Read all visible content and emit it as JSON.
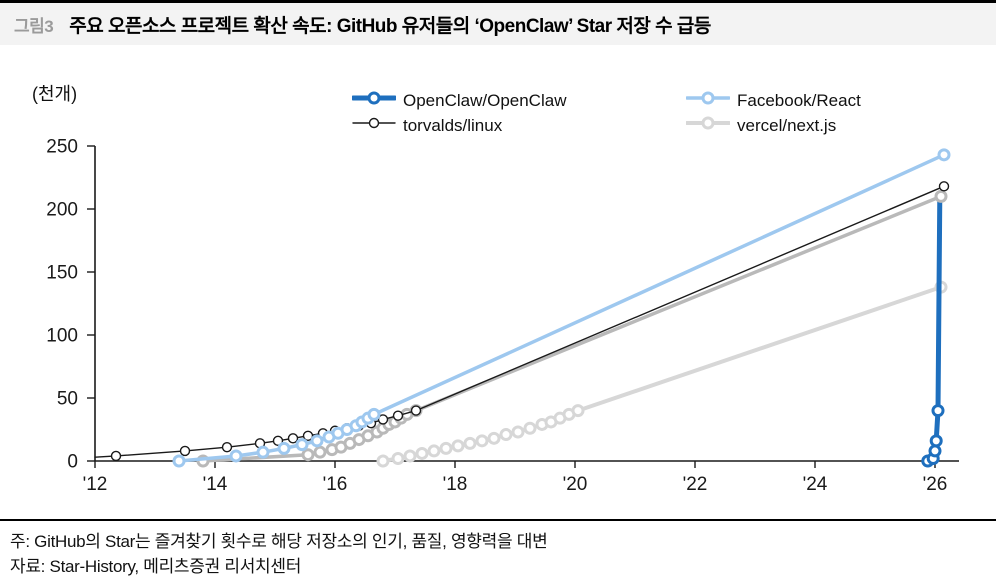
{
  "figure": {
    "tag": "그림3",
    "title": "주요 오픈소스 프로젝트 확산 속도: GitHub 유저들의 ‘OpenClaw’ Star 저장 수 급등"
  },
  "legend": {
    "items": [
      {
        "label": "OpenClaw/OpenClaw",
        "series": "OpenClaw/OpenClaw"
      },
      {
        "label": "Facebook/React",
        "series": "Facebook/React"
      },
      {
        "label": "torvalds/linux",
        "series": "torvalds/linux"
      },
      {
        "label": "vercel/next.js",
        "series": "vercel/next.js"
      }
    ]
  },
  "notes": {
    "note": "주: GitHub의 Star는 즐겨찾기 횟수로 해당 저장소의 인기, 품질, 영향력을 대변",
    "source": "자료: Star-History, 메리츠증권 리서치센터"
  },
  "chart_data": {
    "type": "line",
    "unit_label": "(천개)",
    "xlim": [
      2012,
      2026.4
    ],
    "ylim": [
      0,
      250
    ],
    "x_tick_years": [
      2012,
      2014,
      2016,
      2018,
      2020,
      2022,
      2024,
      2026
    ],
    "x_tick_labels": [
      "'12",
      "'14",
      "'16",
      "'18",
      "'20",
      "'22",
      "'24",
      "'26"
    ],
    "y_ticks": [
      0,
      50,
      100,
      150,
      200,
      250
    ],
    "axis_color": "#1a1a1a",
    "grid": false,
    "legend_position": "top",
    "draw_order": [
      "vercel/next.js",
      "OpenClaw/OpenClaw",
      "unlabeled-gray-series",
      "torvalds/linux",
      "Facebook/React"
    ],
    "series": [
      {
        "name": "OpenClaw/OpenClaw",
        "color": "#1e6fbe",
        "line_width": 5,
        "marker_radius": 5,
        "marker_stroke": 3,
        "points": [
          [
            2025.88,
            0,
            1
          ],
          [
            2025.97,
            2,
            1
          ],
          [
            2026.0,
            8,
            1
          ],
          [
            2026.02,
            16,
            1
          ],
          [
            2026.05,
            40,
            1
          ],
          [
            2026.08,
            210,
            0
          ]
        ]
      },
      {
        "name": "Facebook/React",
        "color": "#9ec8ef",
        "line_width": 3.5,
        "marker_radius": 5,
        "marker_stroke": 3,
        "points": [
          [
            2013.4,
            0,
            1
          ],
          [
            2014.35,
            4,
            1
          ],
          [
            2014.8,
            7,
            1
          ],
          [
            2015.15,
            10,
            1
          ],
          [
            2015.45,
            13,
            1
          ],
          [
            2015.7,
            16,
            1
          ],
          [
            2015.9,
            19,
            1
          ],
          [
            2016.05,
            22,
            1
          ],
          [
            2016.2,
            25,
            1
          ],
          [
            2016.35,
            28,
            1
          ],
          [
            2016.45,
            31,
            1
          ],
          [
            2016.55,
            34,
            1
          ],
          [
            2016.65,
            37,
            1
          ],
          [
            2026.15,
            243,
            1
          ]
        ]
      },
      {
        "name": "torvalds/linux",
        "color": "#1a1a1a",
        "line_width": 1.4,
        "marker_radius": 4.5,
        "marker_stroke": 1.4,
        "points": [
          [
            2012.0,
            3,
            0
          ],
          [
            2012.35,
            4,
            1
          ],
          [
            2013.5,
            8,
            1
          ],
          [
            2014.2,
            11,
            1
          ],
          [
            2014.75,
            14,
            1
          ],
          [
            2015.05,
            16,
            1
          ],
          [
            2015.3,
            18,
            1
          ],
          [
            2015.55,
            20,
            1
          ],
          [
            2015.8,
            22,
            1
          ],
          [
            2016.0,
            24,
            1
          ],
          [
            2016.2,
            26,
            1
          ],
          [
            2016.4,
            28,
            1
          ],
          [
            2016.6,
            30,
            1
          ],
          [
            2016.8,
            33,
            1
          ],
          [
            2017.05,
            36,
            1
          ],
          [
            2017.35,
            40,
            1
          ],
          [
            2026.15,
            218,
            1
          ]
        ]
      },
      {
        "name": "unlabeled-gray-series",
        "color": "#b9b9b9",
        "line_width": 3.5,
        "marker_radius": 5,
        "marker_stroke": 3,
        "points": [
          [
            2013.8,
            0,
            1
          ],
          [
            2015.55,
            5,
            1
          ],
          [
            2015.75,
            7,
            1
          ],
          [
            2015.95,
            9,
            1
          ],
          [
            2016.1,
            11,
            1
          ],
          [
            2016.25,
            14,
            1
          ],
          [
            2016.4,
            17,
            1
          ],
          [
            2016.55,
            20,
            1
          ],
          [
            2016.7,
            23,
            1
          ],
          [
            2016.8,
            26,
            1
          ],
          [
            2016.9,
            29,
            1
          ],
          [
            2017.0,
            31,
            1
          ],
          [
            2017.1,
            34,
            1
          ],
          [
            2017.2,
            37,
            1
          ],
          [
            2017.35,
            40,
            1
          ],
          [
            2026.1,
            210,
            1
          ]
        ]
      },
      {
        "name": "vercel/next.js",
        "color": "#d7d7d7",
        "line_width": 4,
        "marker_radius": 5,
        "marker_stroke": 3,
        "points": [
          [
            2016.8,
            0,
            1
          ],
          [
            2017.05,
            2,
            1
          ],
          [
            2017.25,
            4,
            1
          ],
          [
            2017.45,
            6,
            1
          ],
          [
            2017.65,
            8,
            1
          ],
          [
            2017.85,
            10,
            1
          ],
          [
            2018.05,
            12,
            1
          ],
          [
            2018.25,
            14,
            1
          ],
          [
            2018.45,
            16,
            1
          ],
          [
            2018.65,
            18,
            1
          ],
          [
            2018.85,
            21,
            1
          ],
          [
            2019.05,
            23,
            1
          ],
          [
            2019.25,
            26,
            1
          ],
          [
            2019.45,
            29,
            1
          ],
          [
            2019.6,
            31,
            1
          ],
          [
            2019.75,
            34,
            1
          ],
          [
            2019.9,
            37,
            1
          ],
          [
            2020.05,
            40,
            1
          ],
          [
            2026.1,
            138,
            1
          ]
        ]
      }
    ]
  }
}
